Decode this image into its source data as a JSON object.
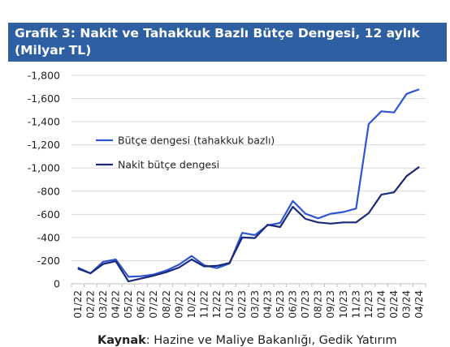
{
  "header": {
    "title": "Grafik 3: Nakit ve Tahakkuk Bazlı Bütçe Dengesi, 12 aylık (Milyar TL)"
  },
  "source": {
    "label": "Kaynak",
    "text": ": Hazine ve Maliye Bakanlığı, Gedik Yatırım"
  },
  "chart_data": {
    "type": "line",
    "title": "",
    "xlabel": "",
    "ylabel": "",
    "ylim": [
      0,
      -1800
    ],
    "y_axis_inverted": true,
    "y_ticks": [
      "-1,800",
      "-1,600",
      "-1,400",
      "-1,200",
      "-1,000",
      "-800",
      "-600",
      "-400",
      "-200",
      "0"
    ],
    "x_tick_labels": [
      "01/22",
      "02/22",
      "03/22",
      "04/22",
      "05/22",
      "06/22",
      "07/22",
      "08/22",
      "09/22",
      "10/22",
      "11/22",
      "12/22",
      "01/23",
      "02/23",
      "03/23",
      "04/23",
      "05/23",
      "06/23",
      "07/23",
      "08/23",
      "09/23",
      "10/23",
      "11/23",
      "12/23",
      "01/24",
      "02/24",
      "03/24",
      "04/24"
    ],
    "grid": "horizontal",
    "legend_position": "left-inside",
    "series": [
      {
        "name": "Bütçe dengesi (tahakkuk bazlı)",
        "color": "#2f55d4",
        "values": [
          -140,
          -90,
          -190,
          -210,
          -60,
          -65,
          -80,
          -115,
          -165,
          -240,
          -160,
          -135,
          -175,
          -440,
          -420,
          -505,
          -525,
          -715,
          -605,
          -565,
          -605,
          -620,
          -650,
          -1380,
          -1490,
          -1480,
          -1640,
          -1680
        ]
      },
      {
        "name": "Nakit bütçe dengesi",
        "color": "#1a2a78",
        "values": [
          -130,
          -90,
          -170,
          -195,
          -20,
          -45,
          -70,
          -100,
          -140,
          -210,
          -150,
          -155,
          -180,
          -400,
          -395,
          -510,
          -490,
          -665,
          -560,
          -530,
          -520,
          -530,
          -530,
          -610,
          -770,
          -790,
          -930,
          -1010
        ]
      }
    ]
  }
}
